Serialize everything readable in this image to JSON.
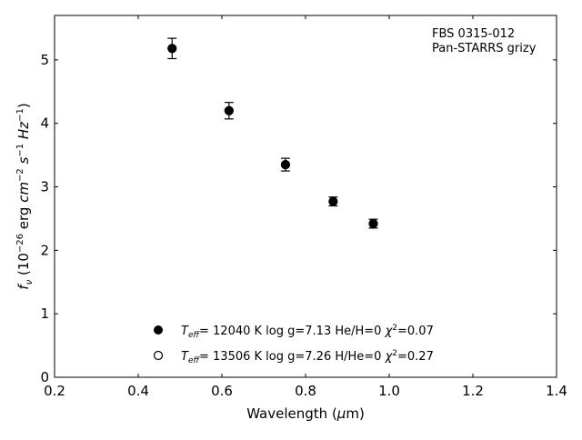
{
  "chart_data": {
    "type": "scatter",
    "xlabel": "Wavelength (μm)",
    "ylabel": "fν (10⁻²⁶ erg cm⁻² s⁻¹ Hz⁻¹)",
    "xlim": [
      0.2,
      1.4
    ],
    "ylim": [
      0,
      5.7
    ],
    "xticks": [
      "0.2",
      "0.4",
      "0.6",
      "0.8",
      "1.0",
      "1.2",
      "1.4"
    ],
    "yticks": [
      "0",
      "1",
      "2",
      "3",
      "4",
      "5"
    ],
    "grid": false,
    "annotation": [
      "FBS 0315-012",
      "Pan-STARRS grizy"
    ],
    "observed": {
      "x": [
        0.481,
        0.617,
        0.752,
        0.866,
        0.962
      ],
      "y": [
        5.18,
        4.2,
        3.35,
        2.77,
        2.42
      ],
      "yerr": [
        0.16,
        0.13,
        0.1,
        0.07,
        0.07
      ]
    },
    "series": [
      {
        "marker": "filled-circle",
        "label": {
          "T": "T",
          "sub": "eff",
          "rest": "= 12040 K  log g=7.13  He/H=0  ",
          "chi": "χ",
          "sup": "2",
          "chi_val": "=0.07"
        },
        "x": [
          0.481,
          0.617,
          0.752,
          0.866,
          0.962
        ],
        "y": [
          5.18,
          4.2,
          3.35,
          2.77,
          2.42
        ]
      },
      {
        "marker": "open-circle",
        "label": {
          "T": "T",
          "sub": "eff",
          "rest": "= 13506 K  log g=7.26  H/He=0  ",
          "chi": "χ",
          "sup": "2",
          "chi_val": "=0.27"
        },
        "x": [
          0.481,
          0.617,
          0.752,
          0.866,
          0.962
        ],
        "y": [
          5.18,
          4.2,
          3.35,
          2.77,
          2.42
        ]
      }
    ],
    "legend_position": "bottom-center"
  }
}
